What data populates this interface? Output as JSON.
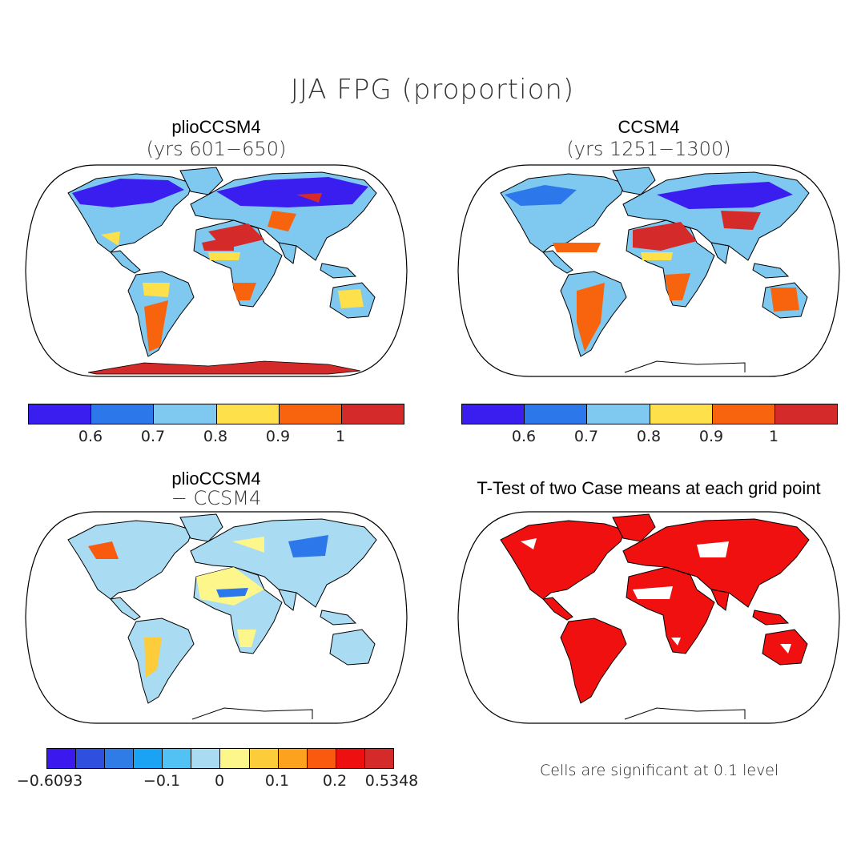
{
  "figure": {
    "title": "JJA FPG (proportion)",
    "panels": [
      {
        "id": "pliocene",
        "title": "plioCCSM4",
        "subtitle": "(yrs 601−650)"
      },
      {
        "id": "control",
        "title": "CCSM4",
        "subtitle": "(yrs 1251−1300)"
      },
      {
        "id": "difference",
        "title": "plioCCSM4",
        "subtitle": "− CCSM4"
      },
      {
        "id": "ttest",
        "title": "T-Test of two Case means at each grid point",
        "subtitle": ""
      }
    ],
    "colorbar_abs": {
      "colors": [
        "#3a1ef0",
        "#2c78ea",
        "#7fc8f0",
        "#fde04a",
        "#f8640e",
        "#d42a2a"
      ],
      "ticks": [
        "0.6",
        "0.7",
        "0.8",
        "0.9",
        "1"
      ]
    },
    "colorbar_diff": {
      "colors": [
        "#3a18ee",
        "#2f4fde",
        "#2f7ce6",
        "#1aa3f4",
        "#52c2f4",
        "#a9dbf2",
        "#fdf68a",
        "#fccc3a",
        "#fca21e",
        "#fa5a0e",
        "#ee1010",
        "#d42a2a"
      ],
      "ticks": [
        "−0.6093",
        "−0.1",
        "0",
        "0.1",
        "0.2",
        "0.5348"
      ]
    },
    "ttest_note": "Cells are significant at 0.1 level",
    "ttest_color": "#f01010",
    "land_outline_color": "#000000"
  }
}
